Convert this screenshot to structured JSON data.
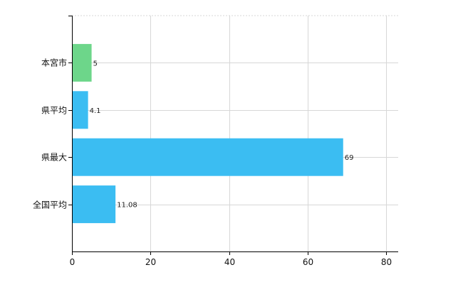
{
  "chart_data": {
    "type": "bar",
    "orientation": "horizontal",
    "categories": [
      "本宮市",
      "県平均",
      "県最大",
      "全国平均"
    ],
    "values": [
      5,
      4.1,
      69,
      11.08
    ],
    "data_labels": [
      "5",
      "4.1",
      "69",
      "11.08"
    ],
    "bar_colors": [
      "#6dd68a",
      "#3bbdf2",
      "#3bbdf2",
      "#3bbdf2"
    ],
    "xlim": [
      0,
      83
    ],
    "x_ticks": [
      0,
      20,
      40,
      60,
      80
    ],
    "x_tick_labels": [
      "0",
      "20",
      "40",
      "60",
      "80"
    ],
    "grid": true,
    "title": "",
    "xlabel": "",
    "ylabel": ""
  },
  "colors": {
    "highlight": "#6dd68a",
    "default": "#3bbdf2",
    "grid": "#d7d7d7",
    "axis": "#000000"
  }
}
